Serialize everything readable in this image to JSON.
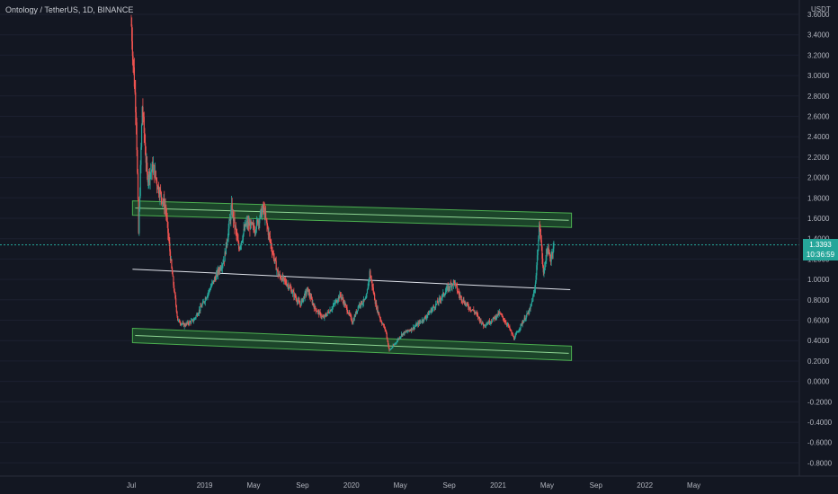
{
  "title": "Ontology / TetherUS, 1D, BINANCE",
  "currency": "USDT",
  "last_price": {
    "value": "1.3393",
    "countdown": "10:36:59"
  },
  "colors": {
    "background": "#131722",
    "up": "#26a69a",
    "down": "#ef5350",
    "channel_fill": "#1e4d2b",
    "channel_stroke": "#4caf50",
    "midline": "#e0e3eb",
    "axis_text": "#b2b5be"
  },
  "chart_data": {
    "type": "candlestick",
    "title": "Ontology / TetherUS, 1D, BINANCE",
    "ylim": [
      -0.9,
      3.7
    ],
    "y_ticks": [
      "3.6000",
      "3.4000",
      "3.2000",
      "3.0000",
      "2.8000",
      "2.6000",
      "2.4000",
      "2.2000",
      "2.0000",
      "1.8000",
      "1.6000",
      "1.4000",
      "1.2000",
      "1.0000",
      "0.8000",
      "0.6000",
      "0.4000",
      "0.2000",
      "0.0000",
      "-0.2000",
      "-0.4000",
      "-0.6000",
      "-0.8000"
    ],
    "x_ticks": [
      "Jul",
      "2019",
      "May",
      "Sep",
      "2020",
      "May",
      "Sep",
      "2021",
      "May",
      "Sep",
      "2022",
      "May"
    ],
    "x_tick_months": [
      0,
      6,
      10,
      14,
      18,
      22,
      26,
      30,
      34,
      38,
      42,
      46
    ],
    "price_path": [
      [
        0,
        3.5
      ],
      [
        0.4,
        2.6
      ],
      [
        0.6,
        1.45
      ],
      [
        0.9,
        2.7
      ],
      [
        1.3,
        2.0
      ],
      [
        1.8,
        2.1
      ],
      [
        2.2,
        1.9
      ],
      [
        2.8,
        1.7
      ],
      [
        3.3,
        1.1
      ],
      [
        3.8,
        0.6
      ],
      [
        4.3,
        0.55
      ],
      [
        5.1,
        0.6
      ],
      [
        5.8,
        0.75
      ],
      [
        6.6,
        0.95
      ],
      [
        7.6,
        1.2
      ],
      [
        8.2,
        1.7
      ],
      [
        8.8,
        1.3
      ],
      [
        9.4,
        1.55
      ],
      [
        10.1,
        1.5
      ],
      [
        10.8,
        1.7
      ],
      [
        11.4,
        1.35
      ],
      [
        12.0,
        1.05
      ],
      [
        12.8,
        0.95
      ],
      [
        13.8,
        0.75
      ],
      [
        14.4,
        0.9
      ],
      [
        15.0,
        0.72
      ],
      [
        15.7,
        0.62
      ],
      [
        16.4,
        0.72
      ],
      [
        17.1,
        0.85
      ],
      [
        18.1,
        0.58
      ],
      [
        18.6,
        0.75
      ],
      [
        19.2,
        0.8
      ],
      [
        19.5,
        1.07
      ],
      [
        20.0,
        0.75
      ],
      [
        20.4,
        0.6
      ],
      [
        20.8,
        0.5
      ],
      [
        21.1,
        0.3
      ],
      [
        21.5,
        0.36
      ],
      [
        22.1,
        0.46
      ],
      [
        23.0,
        0.52
      ],
      [
        24.0,
        0.62
      ],
      [
        25.1,
        0.78
      ],
      [
        25.8,
        0.9
      ],
      [
        26.4,
        0.98
      ],
      [
        26.8,
        0.85
      ],
      [
        27.4,
        0.75
      ],
      [
        28.1,
        0.68
      ],
      [
        28.8,
        0.55
      ],
      [
        29.5,
        0.6
      ],
      [
        30.1,
        0.67
      ],
      [
        30.8,
        0.55
      ],
      [
        31.3,
        0.42
      ],
      [
        32.0,
        0.58
      ],
      [
        32.6,
        0.7
      ],
      [
        33.0,
        0.9
      ],
      [
        33.4,
        1.55
      ],
      [
        33.7,
        1.05
      ],
      [
        34.0,
        1.3
      ],
      [
        34.3,
        1.2
      ],
      [
        34.6,
        1.38
      ]
    ],
    "lines": [
      {
        "name": "",
        "from": [
          0.1,
          1.7
        ],
        "to": [
          36.0,
          1.58
        ],
        "style": "channel"
      },
      {
        "name": "",
        "from": [
          0.1,
          0.45
        ],
        "to": [
          36.0,
          0.275
        ],
        "style": "channel"
      },
      {
        "name": "",
        "from": [
          0.1,
          1.1
        ],
        "to": [
          35.9,
          0.9
        ],
        "style": "line"
      }
    ],
    "last_value": 1.3393
  }
}
